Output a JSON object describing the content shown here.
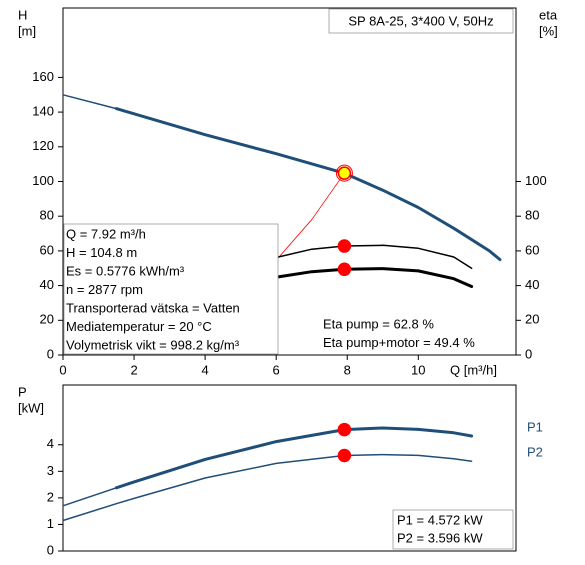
{
  "chart_data": [
    {
      "type": "line",
      "title": "SP 8A-25, 3*400 V, 50Hz",
      "y_label": "H",
      "y_unit": "[m]",
      "y2_label": "eta",
      "y2_unit": "[%]",
      "x_label": "Q [m³/h]",
      "xlim": [
        0,
        12.75
      ],
      "xticks": [
        0,
        2,
        4,
        6,
        8,
        10
      ],
      "ylim": [
        0,
        200
      ],
      "yticks": [
        0,
        20,
        40,
        60,
        80,
        100,
        120,
        140,
        160
      ],
      "y2lim": [
        0,
        200
      ],
      "y2ticks": [
        0,
        20,
        40,
        60,
        80,
        100
      ],
      "grid": false,
      "series": [
        {
          "color": "#1f4e79",
          "weight": "thin",
          "x": [
            0,
            1.5
          ],
          "values": [
            150,
            142
          ]
        },
        {
          "color": "#1f4e79",
          "weight": "thick",
          "x": [
            1.5,
            2,
            4,
            6,
            7.92,
            9,
            10,
            11,
            12,
            12.3
          ],
          "values": [
            142,
            139,
            127,
            116,
            104.8,
            95,
            85,
            73,
            60,
            55
          ]
        },
        {
          "color": "#ff0000",
          "weight": "hair",
          "x": [
            6.06,
            7,
            7.92
          ],
          "values": [
            56,
            78,
            104.8
          ]
        },
        {
          "color": "#000000",
          "weight": "thin",
          "axis": "y2",
          "x": [
            6.06,
            7,
            7.92,
            9,
            10,
            11,
            11.5
          ],
          "values": [
            56.5,
            61,
            62.8,
            63.2,
            61.5,
            56.5,
            50
          ]
        },
        {
          "color": "#000000",
          "weight": "thick",
          "axis": "y2",
          "x": [
            6.06,
            7,
            7.92,
            9,
            10,
            11,
            11.5
          ],
          "values": [
            45,
            48,
            49.4,
            49.8,
            48.5,
            44,
            39.5
          ]
        }
      ],
      "points": [
        {
          "x": 7.92,
          "value": 104.8,
          "color": "#ffff00",
          "edge": "#ff0000"
        },
        {
          "x": 7.92,
          "value": 62.8,
          "axis": "y2",
          "color": "#ff0000"
        },
        {
          "x": 7.92,
          "value": 49.4,
          "axis": "y2",
          "color": "#ff0000"
        }
      ],
      "info_lines": [
        "Q = 7.92 m³/h",
        "H = 104.8 m",
        "Es = 0.5776 kWh/m³",
        "n = 2877 rpm",
        "Transporterad vätska = Vatten",
        "Mediatemperatur = 20 °C",
        "Volymetrisk vikt = 998.2 kg/m³"
      ],
      "eta_lines": [
        "Eta pump = 62.8 %",
        "Eta pump+motor = 49.4 %"
      ]
    },
    {
      "type": "line",
      "y_label": "P",
      "y_unit": "[kW]",
      "xlim": [
        0,
        12.75
      ],
      "ylim": [
        0,
        6.25
      ],
      "yticks": [
        0,
        1,
        2,
        3,
        4
      ],
      "grid": false,
      "series": [
        {
          "color": "#1f4e79",
          "weight": "thin",
          "x": [
            0,
            1.5
          ],
          "values": [
            1.7,
            2.38
          ]
        },
        {
          "name": "P1",
          "color": "#1f4e79",
          "weight": "thick",
          "x": [
            1.5,
            2,
            4,
            6,
            7.92,
            9,
            10,
            11,
            11.5
          ],
          "values": [
            2.38,
            2.6,
            3.45,
            4.12,
            4.572,
            4.63,
            4.58,
            4.45,
            4.33
          ]
        },
        {
          "color": "#1f4e79",
          "weight": "thin",
          "x": [
            0,
            1.5
          ],
          "values": [
            1.15,
            1.78
          ]
        },
        {
          "name": "P2",
          "color": "#1f4e79",
          "weight": "thin",
          "x": [
            1.5,
            2,
            4,
            6,
            7.92,
            9,
            10,
            11,
            11.5
          ],
          "values": [
            1.78,
            1.98,
            2.75,
            3.3,
            3.596,
            3.63,
            3.6,
            3.47,
            3.38
          ]
        }
      ],
      "points": [
        {
          "x": 7.92,
          "value": 4.572,
          "color": "#ff0000"
        },
        {
          "x": 7.92,
          "value": 3.596,
          "color": "#ff0000"
        }
      ],
      "value_lines": [
        "P1 = 4.572 kW",
        "P2 = 3.596 kW"
      ]
    }
  ]
}
